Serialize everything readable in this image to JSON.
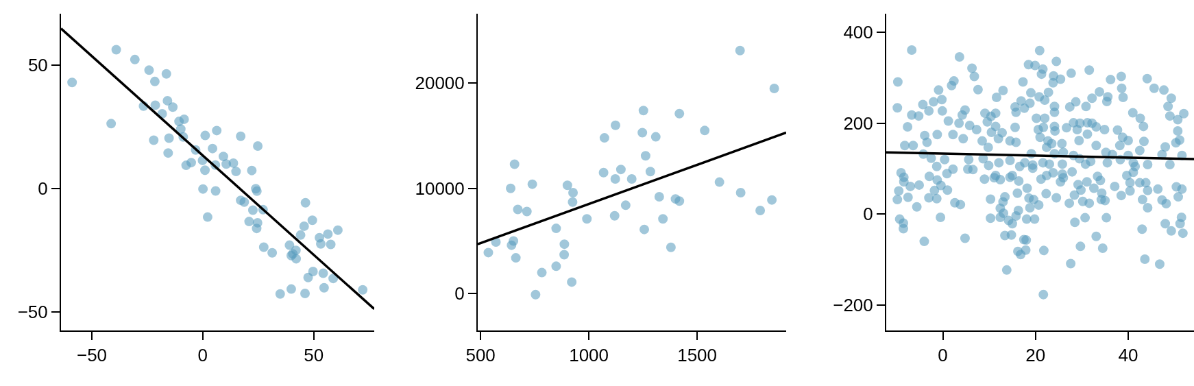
{
  "chart_data": [
    {
      "type": "scatter",
      "xlim": [
        -63.9,
        77.3
      ],
      "ylim": [
        -57.6,
        70.9
      ],
      "xticks": [
        {
          "value": -50,
          "label": "−50"
        },
        0,
        50
      ],
      "yticks": [
        {
          "value": -50,
          "label": "−50"
        },
        0,
        50
      ],
      "series": [
        {
          "color": "#569bbd",
          "marker": "circle",
          "x": [
            -58.9,
            -39.0,
            -41.3,
            -30.6,
            -24.2,
            -21.6,
            -16.4,
            -26.7,
            -21.4,
            -15.9,
            -13.5,
            -18.3,
            -10.7,
            -8.4,
            -9.9,
            -8.8,
            -22.1,
            -15.2,
            -15.6,
            -3.2,
            1.1,
            6.3,
            17.1,
            24.8,
            4.4,
            9.3,
            -0.1,
            -7.5,
            -5.2,
            5.7,
            10.6,
            13.8,
            15.0,
            1.0,
            22.1,
            0.1,
            5.8,
            23.9,
            24.4,
            17.1,
            18.7,
            22.6,
            27.2,
            2.2,
            20.9,
            24.7,
            24.3,
            46.3,
            49.4,
            45.7,
            44.1,
            52.6,
            56.4,
            60.9,
            53.2,
            57.7,
            27.5,
            31.3,
            39.1,
            42.0,
            39.9,
            40.6,
            42.1,
            49.7,
            47.5,
            54.3,
            58.8,
            54.7,
            39.9,
            34.9,
            46.1,
            72.1
          ],
          "values": [
            43.0,
            56.3,
            26.3,
            52.3,
            48.0,
            43.4,
            46.5,
            33.4,
            33.8,
            35.6,
            33.0,
            30.3,
            27.2,
            28.1,
            24.1,
            20.9,
            19.6,
            20.4,
            14.4,
            15.6,
            21.5,
            23.5,
            21.2,
            17.2,
            16.2,
            13.0,
            11.4,
            9.4,
            10.5,
            9.5,
            9.9,
            10.3,
            6.9,
            7.4,
            7.3,
            -0.2,
            -1.0,
            -0.1,
            -1.1,
            -4.8,
            -5.5,
            -8.8,
            -8.6,
            -11.6,
            -13.4,
            -13.9,
            -16.2,
            -5.8,
            -12.9,
            -15.3,
            -18.9,
            -20.0,
            -18.5,
            -16.9,
            -22.5,
            -22.7,
            -23.8,
            -26.1,
            -23.0,
            -25.1,
            -27.2,
            -26.5,
            -28.5,
            -33.7,
            -36.1,
            -34.4,
            -36.5,
            -40.3,
            -40.8,
            -42.8,
            -42.6,
            -41.1
          ]
        },
        {
          "type": "line",
          "color": "#000000",
          "x": [
            -63.9,
            77.3
          ],
          "values": [
            64.9,
            -48.9
          ]
        }
      ]
    },
    {
      "type": "scatter",
      "xlim": [
        487,
        1911
      ],
      "ylim": [
        -3500,
        26600
      ],
      "xticks": [
        500,
        1000,
        1500
      ],
      "yticks": [
        0,
        10000,
        20000
      ],
      "series": [
        {
          "color": "#569bbd",
          "marker": "circle",
          "x": [
            1698,
            1856,
            1252,
            1418,
            1123,
            1535,
            1072,
            1247,
            1309,
            1262,
            657,
            1068,
            1148,
            1284,
            1122,
            1198,
            639,
            739,
            901,
            927,
            925,
            1603,
            1325,
            1400,
            1418,
            1701,
            1845,
            1791,
            672,
            714,
            991,
            1119,
            1170,
            1342,
            1256,
            849,
            571,
            652,
            643,
            536,
            663,
            887,
            886,
            849,
            1379,
            783,
            921,
            754
          ],
          "values": [
            23100,
            19500,
            17400,
            17100,
            16000,
            15500,
            14800,
            15300,
            14900,
            13100,
            12300,
            11500,
            11800,
            11600,
            10900,
            10900,
            10000,
            10400,
            10300,
            9600,
            8700,
            10600,
            9200,
            9000,
            8800,
            9600,
            8900,
            7900,
            8000,
            7800,
            7100,
            7400,
            8400,
            7100,
            6100,
            6200,
            4900,
            5000,
            4600,
            3900,
            3400,
            4700,
            3700,
            2600,
            4400,
            2000,
            1100,
            -100
          ]
        },
        {
          "type": "line",
          "color": "#000000",
          "x": [
            487,
            1911
          ],
          "values": [
            4700,
            15300
          ]
        }
      ]
    },
    {
      "type": "scatter",
      "xlim": [
        -12.2,
        54.2
      ],
      "ylim": [
        -256,
        441
      ],
      "xticks": [
        0,
        20,
        40
      ],
      "yticks": [
        {
          "value": -200,
          "label": "−200"
        },
        0,
        200,
        400
      ],
      "series": [
        {
          "color": "#569bbd",
          "marker": "circle",
          "x": [
            -6.7,
            -9.7,
            -9.8,
            3.6,
            6.3,
            6.8,
            2.4,
            1.9,
            -0.9,
            7.6,
            -0.2,
            -2.0,
            -4.3,
            -3.0,
            -0.1,
            -6.7,
            -5.2,
            -7.6,
            1.2,
            4.2,
            4.8,
            3.5,
            5.8,
            7.3,
            2.2,
            -1.2,
            -3.9,
            -3.4,
            4.4,
            -8.2,
            -6.4,
            -4.2,
            -2.5,
            0.4,
            -1.3,
            2.2,
            0.9,
            5.6,
            5.4,
            6.5,
            -9.0,
            -8.4,
            -8.4,
            -7.0,
            -5.1,
            -2.9,
            -1.2,
            -0.4,
            -1.8,
            1.0,
            -9.5,
            -7.5,
            -9.8,
            -3.0,
            -1.3,
            -5.6,
            2.6,
            3.8,
            -9.3,
            -8.5,
            -8.5,
            -0.5,
            -4.0,
            4.8,
            9.1,
            11.4,
            9.6,
            10.4,
            11.6,
            13.0,
            11.4,
            10.5,
            8.5,
            12.8,
            12.0,
            14.5,
            15.6,
            9.8,
            8.7,
            9.9,
            12.1,
            14.5,
            15.8,
            17.3,
            18.5,
            19.9,
            20.9,
            21.6,
            21.3,
            24.5,
            23.9,
            25.4,
            27.7,
            23.8,
            22.8,
            19.0,
            20.8,
            22.0,
            16.9,
            18.8,
            15.6,
            15.8,
            17.6,
            24.1,
            24.1,
            20.2,
            22.0,
            27.4,
            28.7,
            20.6,
            21.7,
            24.1,
            24.2,
            21.0,
            22.7,
            22.4,
            23.5,
            25.7,
            26.7,
            28.2,
            29.6,
            29.0,
            29.4,
            31.2,
            32.2,
            31.2,
            33.1,
            34.9,
            31.6,
            33.8,
            32.2,
            30.9,
            35.6,
            36.2,
            35.4,
            38.5,
            38.6,
            38.9,
            41.0,
            42.6,
            43.3,
            44.1,
            45.6,
            47.7,
            49.3,
            48.6,
            49.0,
            52.0,
            50.7,
            50.7,
            37.7,
            38.8,
            40.0,
            38.2,
            33.1,
            35.2,
            36.6,
            42.5,
            43.4,
            47.3,
            51.6,
            48.0,
            50.3,
            51.1,
            26.0,
            28.2,
            25.8,
            29.5,
            30.8,
            31.9,
            35.5,
            38.3,
            40.0,
            41.1,
            41.5,
            44.2,
            49.0,
            41.1,
            39.7,
            40.4,
            40.4,
            37.1,
            38.5,
            42.5,
            43.8,
            44.2,
            46.4,
            50.4,
            51.6,
            50.8,
            47.3,
            48.2,
            43.1,
            44.2,
            33.4,
            34.0,
            32.6,
            34.3,
            34.2,
            35.0,
            31.1,
            29.2,
            29.8,
            28.4,
            25.8,
            27.9,
            26.0,
            25.4,
            24.5,
            30.2,
            31.6,
            27.3,
            30.7,
            28.5,
            35.3,
            33.1,
            29.7,
            34.5,
            27.6,
            43.0,
            43.6,
            46.8,
            48.0,
            49.3,
            51.5,
            51.2,
            51.8,
            23.0,
            21.6,
            23.8,
            22.4,
            21.2,
            24.1,
            19.1,
            19.4,
            19.4,
            16.6,
            17.7,
            16.4,
            15.0,
            14.5,
            11.4,
            11.1,
            9.0,
            12.4,
            18.2,
            16.1,
            22.3,
            18.6,
            19.6,
            20.7,
            18.8,
            10.3,
            13.4,
            13.0,
            12.4,
            13.1,
            16.3,
            15.8,
            12.4,
            10.3,
            14.2,
            15.0,
            18.1,
            19.8,
            13.4,
            14.8,
            17.5,
            18.0,
            16.2,
            16.8,
            17.9,
            21.8,
            13.8,
            21.7
          ],
          "values": [
            361,
            291,
            234,
            346,
            321,
            303,
            293,
            283,
            273,
            274,
            252,
            247,
            241,
            227,
            227,
            218,
            216,
            192,
            205,
            218,
            229,
            200,
            195,
            186,
            175,
            175,
            173,
            158,
            166,
            151,
            151,
            132,
            123,
            120,
            105,
            99,
            89,
            120,
            99,
            98,
            91,
            81,
            71,
            61,
            64,
            83,
            75,
            63,
            52,
            53,
            51,
            37,
            32,
            36,
            34,
            16,
            25,
            21,
            -11,
            -20,
            -32,
            -7,
            -60,
            -53,
            222,
            222,
            203,
            215,
            257,
            272,
            193,
            180,
            161,
            179,
            166,
            161,
            191,
            147,
            122,
            107,
            113,
            118,
            158,
            291,
            329,
            327,
            360,
            319,
            308,
            336,
            304,
            297,
            310,
            289,
            268,
            267,
            258,
            251,
            249,
            244,
            236,
            224,
            233,
            237,
            224,
            211,
            211,
            236,
            247,
            186,
            191,
            193,
            183,
            169,
            161,
            147,
            155,
            155,
            190,
            201,
            200,
            186,
            162,
            201,
            200,
            176,
            192,
            186,
            317,
            269,
            255,
            237,
            258,
            296,
            248,
            303,
            277,
            257,
            223,
            211,
            193,
            298,
            277,
            273,
            255,
            237,
            216,
            221,
            208,
            183,
            185,
            169,
            162,
            151,
            151,
            136,
            131,
            140,
            160,
            131,
            129,
            148,
            157,
            163,
            136,
            129,
            110,
            122,
            110,
            116,
            113,
            120,
            129,
            113,
            105,
            109,
            109,
            92,
            85,
            69,
            51,
            61,
            41,
            69,
            69,
            52,
            55,
            60,
            55,
            38,
            31,
            23,
            32,
            14,
            83,
            74,
            57,
            46,
            32,
            30,
            71,
            65,
            53,
            42,
            88,
            93,
            80,
            71,
            36,
            28,
            24,
            24,
            -8,
            -18,
            -8,
            -49,
            -71,
            -75,
            -109,
            -33,
            -99,
            -110,
            -21,
            -37,
            -7,
            -21,
            -42,
            110,
            113,
            91,
            85,
            77,
            133,
            133,
            108,
            101,
            105,
            113,
            73,
            85,
            81,
            85,
            80,
            77,
            76,
            57,
            46,
            45,
            35,
            32,
            20,
            14,
            33,
            38,
            27,
            13,
            2,
            8,
            -4,
            -7,
            -9,
            -14,
            -21,
            -11,
            -11,
            -47,
            -46,
            -56,
            -57,
            -82,
            -89,
            -79,
            -80,
            -123,
            -177
          ]
        },
        {
          "type": "line",
          "color": "#000000",
          "x": [
            -12.2,
            54.2
          ],
          "values": [
            136,
            121
          ]
        }
      ]
    }
  ]
}
